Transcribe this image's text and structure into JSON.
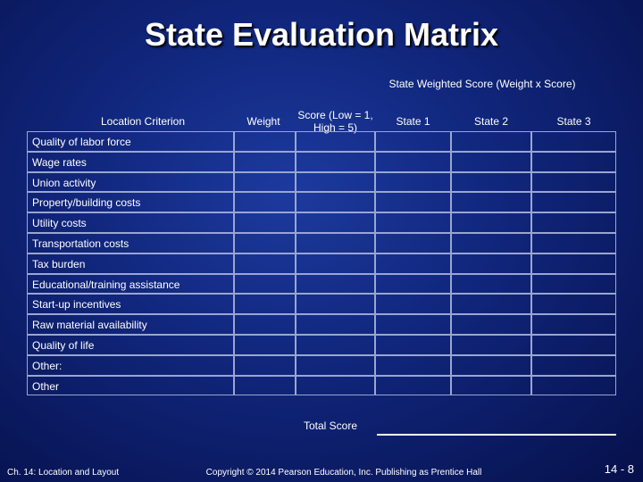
{
  "header": {
    "title": "State Evaluation Matrix",
    "group_label": "State Weighted Score (Weight x Score)"
  },
  "table": {
    "columns": [
      "Location Criterion",
      "Weight",
      "Score (Low = 1, High = 5)",
      "State 1",
      "State 2",
      "State 3"
    ],
    "rows": [
      "Quality of labor force",
      "Wage rates",
      "Union activity",
      "Property/building costs",
      "Utility costs",
      "Transportation costs",
      "Tax burden",
      "Educational/training assistance",
      "Start-up incentives",
      "Raw material availability",
      "Quality of life",
      "Other:",
      "Other"
    ],
    "total_label": "Total Score"
  },
  "footer": {
    "left": "Ch. 14: Location and Layout",
    "copyright": "Copyright © 2014 Pearson Education, Inc. Publishing as Prentice Hall",
    "page": "14 - 8"
  }
}
